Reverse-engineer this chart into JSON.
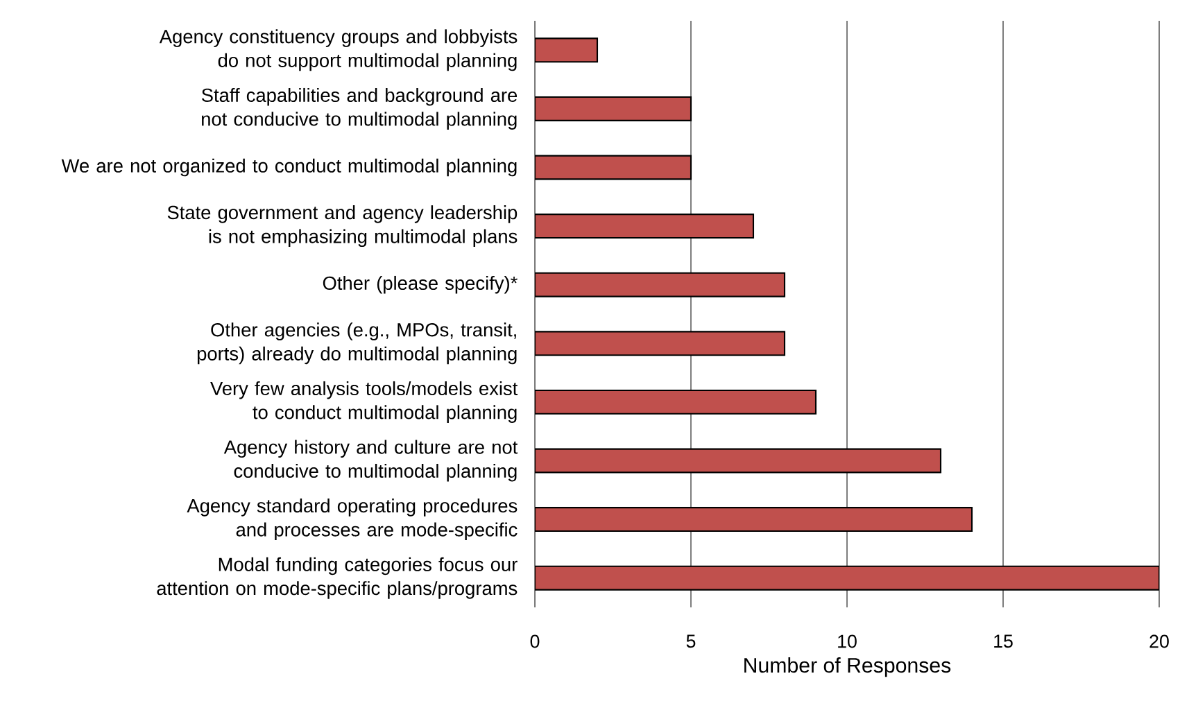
{
  "chart_data": {
    "type": "bar",
    "orientation": "horizontal",
    "xlabel": "Number of Responses",
    "categories": [
      "Agency constituency groups and lobbyists do not support multimodal planning",
      "Staff capabilities and background are not conducive to multimodal planning",
      "We are not organized to conduct multimodal planning",
      "State government and agency leadership is not emphasizing multimodal plans",
      "Other (please specify)*",
      "Other agencies (e.g., MPOs, transit, ports) already do multimodal planning",
      "Very few analysis tools/models exist to conduct multimodal planning",
      "Agency history and culture are not conducive to multimodal planning",
      "Agency standard operating procedures and processes are mode-specific",
      "Modal funding categories focus our attention on mode-specific plans/programs"
    ],
    "values": [
      2,
      5,
      5,
      7,
      8,
      8,
      9,
      13,
      14,
      20
    ],
    "color": "#c0504d",
    "xlim": [
      0,
      20
    ],
    "xticks": [
      0,
      5,
      10,
      15,
      20
    ],
    "grid": "x"
  }
}
